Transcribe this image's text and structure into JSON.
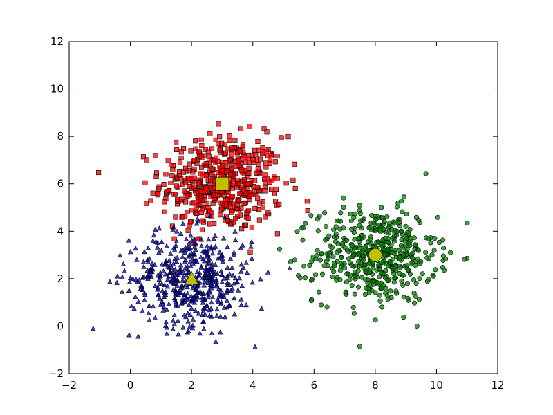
{
  "chart_data": {
    "type": "scatter",
    "title": "",
    "xlabel": "",
    "ylabel": "",
    "xlim": [
      -2,
      12
    ],
    "ylim": [
      -2,
      12
    ],
    "xticks": [
      -2,
      0,
      2,
      4,
      6,
      8,
      10,
      12
    ],
    "yticks": [
      -2,
      0,
      2,
      4,
      6,
      8,
      10,
      12
    ],
    "grid": false,
    "legend": "none",
    "clusters": [
      {
        "marker": "square",
        "color": "#ff0000",
        "count": 500,
        "center": [
          3.0,
          6.0
        ],
        "spread": [
          1.0,
          1.0
        ],
        "centroid": {
          "x": 3.0,
          "y": 6.0,
          "marker": "square",
          "color": "#bfbf00"
        }
      },
      {
        "marker": "circle",
        "color": "#008000",
        "count": 500,
        "center": [
          8.0,
          3.0
        ],
        "spread": [
          1.0,
          1.0
        ],
        "centroid": {
          "x": 8.0,
          "y": 3.0,
          "marker": "circle",
          "color": "#bfbf00"
        }
      },
      {
        "marker": "triangle",
        "color": "#0000bf",
        "count": 500,
        "center": [
          2.0,
          2.0
        ],
        "spread": [
          1.0,
          1.0
        ],
        "centroid": {
          "x": 2.0,
          "y": 2.0,
          "marker": "triangle",
          "color": "#bfbf00"
        }
      }
    ]
  }
}
